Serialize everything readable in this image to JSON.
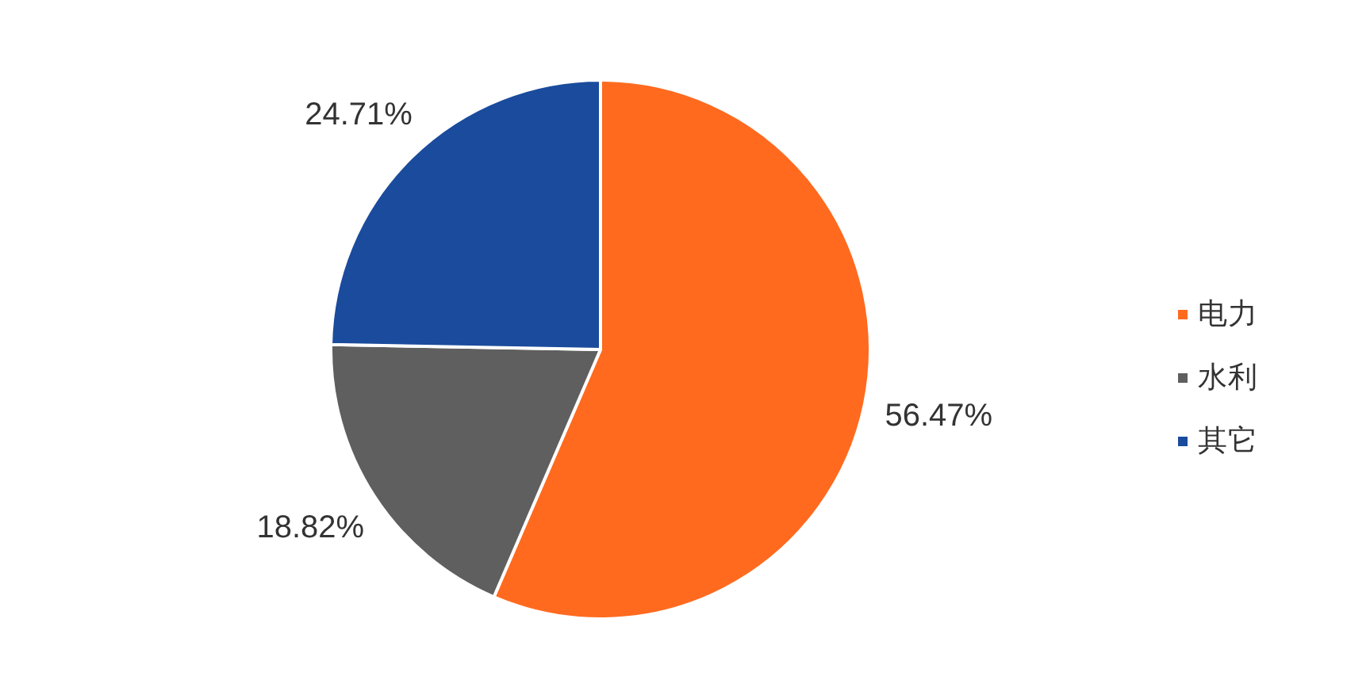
{
  "chart_data": {
    "type": "pie",
    "categories": [
      "电力",
      "水利",
      "其它"
    ],
    "values": [
      56.47,
      18.82,
      24.71
    ],
    "colors": [
      "#ff6a1f",
      "#5f5f5f",
      "#1a4b9c"
    ],
    "value_labels": [
      "56.47%",
      "18.82%",
      "24.71%"
    ],
    "legend": "right"
  }
}
